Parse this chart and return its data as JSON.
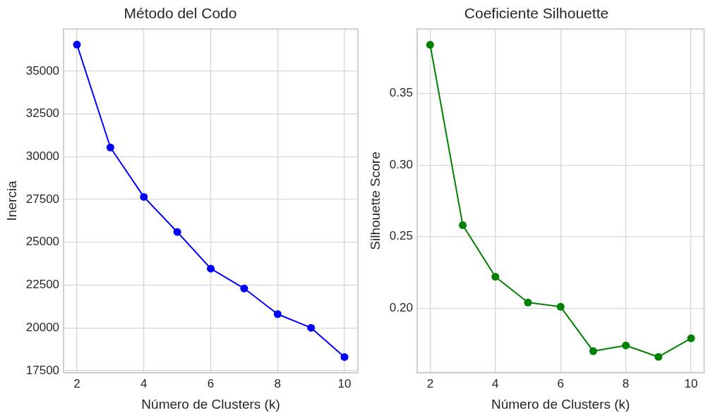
{
  "chart_data": [
    {
      "type": "line",
      "title": "Método del Codo",
      "xlabel": "Número de Clusters (k)",
      "ylabel": "Inercia",
      "x": [
        2,
        3,
        4,
        5,
        6,
        7,
        8,
        9,
        10
      ],
      "series": [
        {
          "color": "#0000ff",
          "values": [
            36550,
            30540,
            27650,
            25600,
            23460,
            22300,
            20800,
            20000,
            18290
          ]
        }
      ],
      "xlim": [
        1.6,
        10.4
      ],
      "xticks": [
        2,
        4,
        6,
        8,
        10
      ],
      "ylim": [
        17380,
        37460
      ],
      "yticks": [
        17500,
        20000,
        22500,
        25000,
        27500,
        30000,
        32500,
        35000
      ],
      "grid": true,
      "marker": "circle",
      "line_style": "solid"
    },
    {
      "type": "line",
      "title": "Coeficiente Silhouette",
      "xlabel": "Número de Clusters (k)",
      "ylabel": "Silhouette Score",
      "x": [
        2,
        3,
        4,
        5,
        6,
        7,
        8,
        9,
        10
      ],
      "series": [
        {
          "color": "#008000",
          "values": [
            0.384,
            0.258,
            0.222,
            0.204,
            0.201,
            0.17,
            0.174,
            0.166,
            0.179
          ]
        }
      ],
      "xlim": [
        1.6,
        10.4
      ],
      "xticks": [
        2,
        4,
        6,
        8,
        10
      ],
      "ylim": [
        0.155,
        0.395
      ],
      "yticks": [
        {
          "value": 0.2,
          "label": "0.20"
        },
        0.25,
        {
          "value": 0.3,
          "label": "0.30"
        },
        0.35
      ],
      "grid": true,
      "marker": "circle",
      "line_style": "solid"
    }
  ]
}
